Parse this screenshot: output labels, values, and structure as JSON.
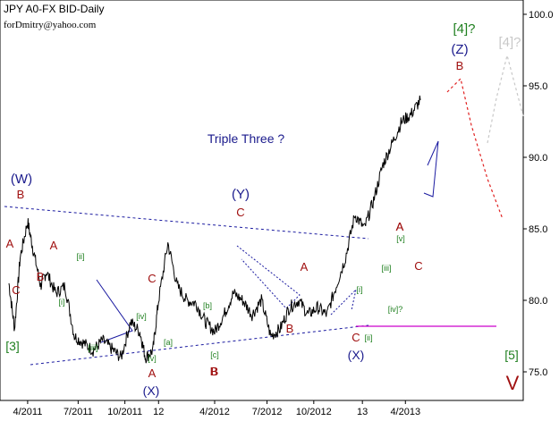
{
  "chart_data": {
    "type": "line",
    "title": "JPY A0-FX BID-Daily",
    "credit": "forDmitry@yahoo.com",
    "instrument": "JPY A0-FX",
    "timeframe": "Daily",
    "ylim": [
      73.0,
      101.0
    ],
    "y_ticks": [
      75.0,
      80.0,
      85.0,
      90.0,
      95.0,
      100.0
    ],
    "y_tick_labels": [
      "75.0",
      "80.0",
      "85.0",
      "90.0",
      "95.0",
      "100.0"
    ],
    "x_ticks": [
      0,
      3,
      6,
      9,
      12,
      15,
      18,
      21,
      24,
      27
    ],
    "x_tick_labels": [
      "4/2011",
      "7/2011",
      "10/2011",
      "12",
      "4/2012",
      "7/2012",
      "10/2012",
      "13",
      "4/2013",
      ""
    ],
    "x_tick_labels_shown": [
      "4/2011",
      "7/2011",
      "10/2011",
      "12",
      "4/2012",
      "7/2012",
      "10/2012",
      "13",
      "4/2013"
    ],
    "annotation_title": "Triple Three ?",
    "colors": {
      "price": "#000000",
      "blue_label": "#1a1a8c",
      "red_label": "#a01010",
      "green_label": "#1a7a1a",
      "trendline": "#1a1aa0",
      "support": "#cc00cc",
      "forecast_red": "#e02020",
      "forecast_gray": "#c8c8c8",
      "green_count": "#208020",
      "grid_axis": "#000000"
    },
    "series": [
      {
        "name": "",
        "x": [
          0.0,
          0.3,
          0.6,
          1.0,
          1.3,
          1.7,
          2.0,
          2.5,
          3.0,
          3.5,
          4.0,
          4.5,
          5.0,
          5.5,
          6.0,
          6.5,
          7.0,
          7.3,
          7.7,
          8.0,
          8.5,
          9.0,
          9.5,
          10.0,
          10.5,
          11.0,
          11.5,
          12.0,
          12.5,
          13.0,
          13.5,
          14.0,
          14.5,
          15.0,
          15.5,
          16.0,
          16.5,
          17.0,
          17.5,
          18.0,
          18.5,
          19.0,
          19.5,
          20.0,
          20.5,
          21.0,
          21.5,
          22.0
        ],
        "y": [
          81.2,
          78.0,
          83.0,
          85.5,
          83.5,
          81.0,
          82.0,
          80.5,
          81.0,
          77.5,
          77.0,
          76.5,
          77.2,
          76.6,
          76.0,
          78.5,
          77.8,
          76.0,
          76.5,
          80.0,
          84.0,
          81.0,
          80.0,
          79.8,
          78.5,
          77.8,
          79.0,
          80.5,
          80.0,
          79.0,
          80.0,
          77.5,
          78.0,
          79.5,
          80.0,
          79.0,
          79.5,
          79.0,
          81.0,
          83.0,
          86.0,
          85.0,
          87.0,
          89.5,
          91.0,
          92.5,
          93.0,
          94.0
        ]
      }
    ],
    "wave_labels": {
      "W": "(W)",
      "Y": "(Y)",
      "Z": "(Z)",
      "X1": "(X)",
      "X2": "(X)",
      "big4": "[4]?",
      "big4_gray": "[4]?",
      "big3": "[3]",
      "big5": "[5]",
      "V": "V",
      "triple": "Triple Three ?"
    },
    "red_labels": [
      "A",
      "B",
      "C",
      "A",
      "B",
      "C",
      "A",
      "B",
      "C",
      "A",
      "B",
      "C",
      "A",
      "B",
      "C",
      "B",
      "A"
    ],
    "green_labels": [
      "[ii]",
      "[i]",
      "[iii]",
      "[iv]",
      "[v]",
      "[a]",
      "[b]",
      "[c]",
      "[i]",
      "[ii]",
      "[iii]",
      "[iv]?",
      "[v]"
    ]
  }
}
